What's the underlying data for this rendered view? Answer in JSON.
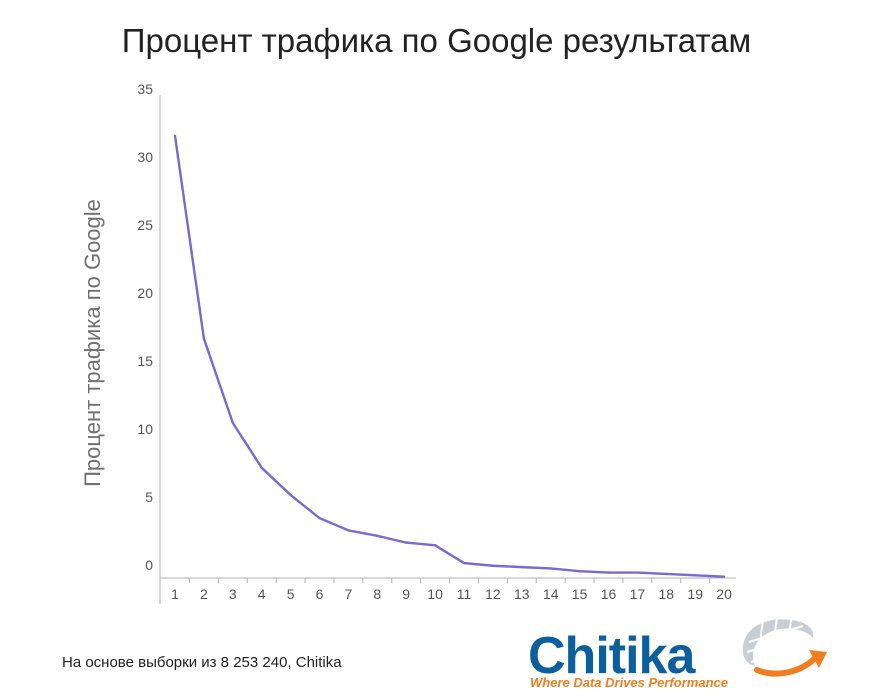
{
  "colors": {
    "line": "#7b68d1",
    "axis": "#b0b0b0",
    "logo_blue": "#0a5f9c",
    "logo_orange": "#f07d1e"
  },
  "footer": {
    "source_note": "На основе выборки из 8 253 240, Chitika"
  },
  "logo": {
    "wordmark": "Chitika",
    "tagline": "Where Data Drives Performance",
    "icon": "globe-swoosh-icon"
  },
  "chart_data": {
    "type": "line",
    "title": "Процент трафика по Google результатам",
    "xlabel": "",
    "ylabel": "Процент трафика по Google",
    "x": [
      1,
      2,
      3,
      4,
      5,
      6,
      7,
      8,
      9,
      10,
      11,
      12,
      13,
      14,
      15,
      16,
      17,
      18,
      19,
      20
    ],
    "series": [
      {
        "values": [
          32.5,
          17.6,
          11.4,
          8.1,
          6.1,
          4.4,
          3.5,
          3.1,
          2.6,
          2.4,
          1.1,
          0.9,
          0.8,
          0.7,
          0.5,
          0.4,
          0.4,
          0.3,
          0.2,
          0.1
        ]
      }
    ],
    "yticks": [
      0,
      5,
      10,
      15,
      20,
      25,
      30,
      35
    ],
    "ylim": [
      0,
      35.5
    ],
    "grid": false,
    "legend": "none"
  }
}
